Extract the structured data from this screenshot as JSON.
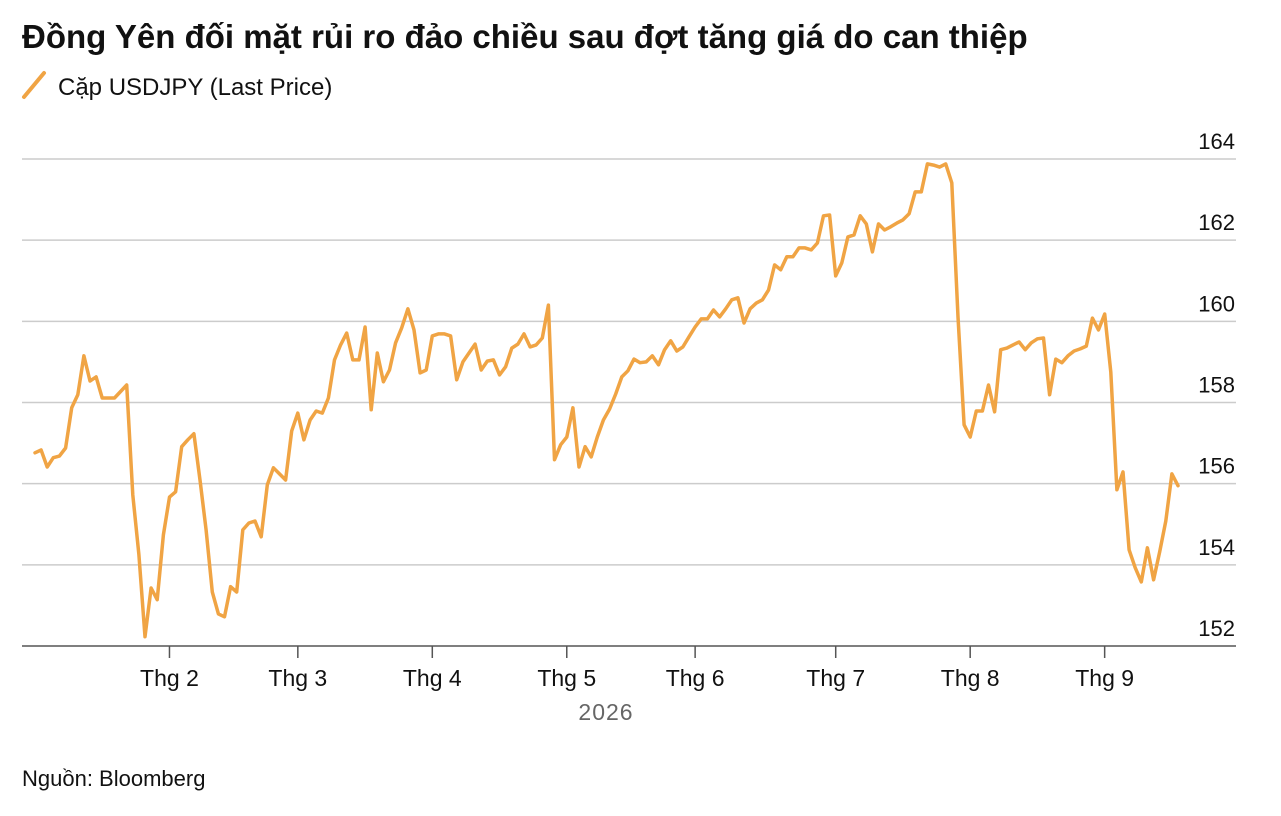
{
  "chart_data": {
    "type": "line",
    "title": "Đồng Yên đối mặt rủi ro đảo chiều sau đợt tăng giá do can thiệp",
    "xlabel": "2026",
    "source": "Nguồn: Bloomberg",
    "categories": [
      null,
      null,
      null,
      null,
      null,
      null,
      null,
      null,
      null,
      null,
      null,
      null,
      null,
      null,
      null,
      null,
      null,
      null,
      null,
      null,
      null,
      null,
      "Thg 2",
      null,
      null,
      null,
      null,
      null,
      null,
      null,
      null,
      null,
      null,
      null,
      null,
      null,
      null,
      null,
      null,
      null,
      null,
      null,
      null,
      "Thg 3",
      null,
      null,
      null,
      null,
      null,
      null,
      null,
      null,
      null,
      null,
      null,
      null,
      null,
      null,
      null,
      null,
      null,
      null,
      null,
      null,
      null,
      "Thg 4",
      null,
      null,
      null,
      null,
      null,
      null,
      null,
      null,
      null,
      null,
      null,
      null,
      null,
      null,
      null,
      null,
      null,
      null,
      null,
      null,
      null,
      "Thg 5",
      null,
      null,
      null,
      null,
      null,
      null,
      null,
      null,
      null,
      null,
      null,
      null,
      null,
      null,
      null,
      null,
      null,
      null,
      null,
      null,
      "Thg 6",
      null,
      null,
      null,
      null,
      null,
      null,
      null,
      null,
      null,
      null,
      null,
      null,
      null,
      null,
      null,
      null,
      null,
      null,
      null,
      null,
      null,
      null,
      "Thg 7",
      null,
      null,
      null,
      null,
      null,
      null,
      null,
      null,
      null,
      null,
      null,
      null,
      null,
      null,
      null,
      null,
      null,
      null,
      null,
      null,
      null,
      "Thg 8",
      null,
      null,
      null,
      null,
      null,
      null,
      null,
      null,
      null,
      null,
      null,
      null,
      null,
      null,
      null,
      null,
      null,
      null,
      null,
      null,
      null,
      "Thg 9",
      null,
      null,
      null,
      null,
      null,
      null,
      null,
      null,
      null,
      null,
      null,
      null
    ],
    "series": [
      {
        "name": "Cặp USDJPY (Last Price)",
        "color": "#f0a444",
        "values": [
          156.76,
          156.83,
          156.41,
          156.64,
          156.68,
          156.88,
          157.87,
          158.19,
          159.15,
          158.53,
          158.63,
          158.11,
          158.11,
          158.11,
          158.27,
          158.43,
          155.72,
          154.25,
          152.23,
          153.43,
          153.14,
          154.74,
          155.67,
          155.8,
          156.91,
          157.08,
          157.23,
          156.09,
          154.86,
          153.33,
          152.79,
          152.72,
          153.46,
          153.33,
          154.86,
          155.03,
          155.08,
          154.69,
          155.97,
          156.39,
          156.24,
          156.09,
          157.3,
          157.74,
          157.08,
          157.57,
          157.79,
          157.74,
          158.11,
          159.05,
          159.42,
          159.71,
          159.05,
          159.05,
          159.86,
          157.82,
          159.22,
          158.51,
          158.8,
          159.47,
          159.84,
          160.31,
          159.79,
          158.73,
          158.8,
          159.64,
          159.69,
          159.69,
          159.64,
          158.56,
          159.0,
          159.22,
          159.44,
          158.8,
          159.02,
          159.05,
          158.68,
          158.88,
          159.34,
          159.44,
          159.69,
          159.37,
          159.42,
          159.59,
          160.4,
          156.59,
          156.96,
          157.15,
          157.87,
          156.41,
          156.91,
          156.66,
          157.15,
          157.57,
          157.84,
          158.21,
          158.63,
          158.78,
          159.07,
          158.98,
          159.0,
          159.15,
          158.93,
          159.3,
          159.52,
          159.27,
          159.37,
          159.62,
          159.86,
          160.06,
          160.06,
          160.28,
          160.11,
          160.31,
          160.53,
          160.58,
          159.96,
          160.31,
          160.45,
          160.53,
          160.77,
          161.39,
          161.27,
          161.59,
          161.59,
          161.81,
          161.81,
          161.76,
          161.93,
          162.6,
          162.62,
          161.12,
          161.44,
          162.08,
          162.13,
          162.6,
          162.4,
          161.71,
          162.4,
          162.25,
          162.33,
          162.42,
          162.5,
          162.65,
          163.19,
          163.19,
          163.88,
          163.85,
          163.8,
          163.88,
          163.41,
          160.11,
          157.45,
          157.15,
          157.79,
          157.79,
          158.43,
          157.77,
          159.3,
          159.34,
          159.42,
          159.49,
          159.3,
          159.47,
          159.57,
          159.59,
          158.19,
          159.07,
          158.98,
          159.15,
          159.27,
          159.32,
          159.39,
          160.08,
          159.79,
          160.18,
          158.75,
          155.85,
          156.29,
          154.37,
          153.93,
          153.58,
          154.42,
          153.63,
          154.32,
          155.08,
          156.24,
          155.95
        ]
      }
    ],
    "ylim": [
      152,
      164
    ],
    "yticks": [
      152,
      154,
      156,
      158,
      160,
      162,
      164
    ],
    "grid": true
  }
}
